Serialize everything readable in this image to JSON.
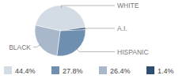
{
  "chart_data": {
    "type": "pie",
    "categories": [
      "WHITE",
      "A.I.",
      "HISPANIC",
      "BLACK"
    ],
    "values": [
      44.4,
      1.4,
      27.8,
      26.4
    ],
    "value_labels": [
      "44.4%",
      "1.4%",
      "27.8%",
      "26.4%"
    ],
    "colors": [
      "#d3dbe4",
      "#2b4e72",
      "#6f8fb0",
      "#a8b8ca"
    ],
    "legend": "bottom"
  }
}
